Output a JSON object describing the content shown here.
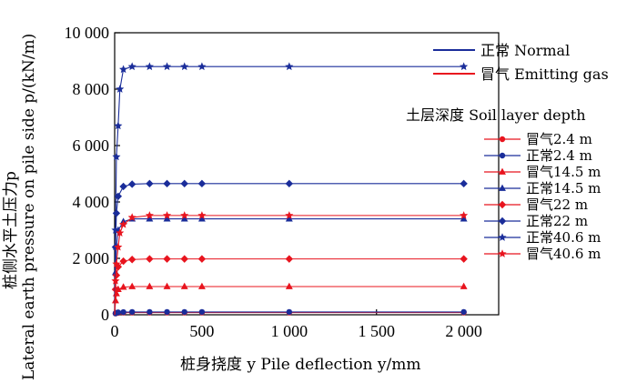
{
  "chart_data": {
    "type": "line",
    "xlabel": "桩身挠度 y  Pile deflection y/mm",
    "ylabel_cn": "桩侧水平土压力p",
    "ylabel_en": "Lateral earth pressure on pile side p/(kN/m)",
    "xlim": [
      0,
      2200
    ],
    "ylim": [
      0,
      10000
    ],
    "x_ticks": [
      0,
      500,
      1000,
      1500,
      2000
    ],
    "x_tick_labels": [
      "0",
      "500",
      "1 000",
      "1 500",
      "2 000"
    ],
    "y_ticks": [
      0,
      2000,
      4000,
      6000,
      8000,
      10000
    ],
    "y_tick_labels": [
      "0",
      "2 000",
      "4 000",
      "6 000",
      "8 000",
      "10 000"
    ],
    "legend_main": [
      {
        "label": "正常 Normal",
        "color": "#1a2d9a"
      },
      {
        "label": "冒气 Emitting gas",
        "color": "#e8141e"
      }
    ],
    "legend_title": "土层深度 Soil layer depth",
    "series": [
      {
        "name": "冒气2.4 m",
        "color": "#e8141e",
        "marker": "circle",
        "x": [
          0,
          5,
          10,
          20,
          50,
          100,
          200,
          300,
          400,
          500,
          1000,
          2000
        ],
        "y": [
          0,
          45,
          60,
          70,
          78,
          80,
          80,
          80,
          80,
          80,
          80,
          80
        ]
      },
      {
        "name": "正常2.4 m",
        "color": "#1a2d9a",
        "marker": "circle",
        "x": [
          0,
          5,
          10,
          20,
          50,
          100,
          200,
          300,
          400,
          500,
          1000,
          2000
        ],
        "y": [
          0,
          50,
          70,
          85,
          95,
          100,
          100,
          100,
          100,
          100,
          100,
          100
        ]
      },
      {
        "name": "冒气14.5 m",
        "color": "#e8141e",
        "marker": "triangle",
        "x": [
          0,
          5,
          10,
          20,
          50,
          100,
          200,
          300,
          400,
          500,
          1000,
          2000
        ],
        "y": [
          0,
          500,
          750,
          900,
          980,
          1000,
          1000,
          1000,
          1000,
          1000,
          1000,
          1000
        ]
      },
      {
        "name": "正常14.5 m",
        "color": "#1a2d9a",
        "marker": "triangle",
        "x": [
          0,
          5,
          10,
          20,
          50,
          100,
          200,
          300,
          400,
          500,
          1000,
          2000
        ],
        "y": [
          0,
          1500,
          2400,
          3000,
          3300,
          3400,
          3400,
          3400,
          3400,
          3400,
          3400,
          3400
        ]
      },
      {
        "name": "冒气22 m",
        "color": "#e8141e",
        "marker": "diamond",
        "x": [
          0,
          5,
          10,
          20,
          50,
          100,
          200,
          300,
          400,
          500,
          1000,
          2000
        ],
        "y": [
          0,
          900,
          1400,
          1700,
          1900,
          1960,
          1980,
          1980,
          1980,
          1980,
          1980,
          1980
        ]
      },
      {
        "name": "正常22 m",
        "color": "#1a2d9a",
        "marker": "diamond",
        "x": [
          0,
          5,
          10,
          20,
          50,
          100,
          200,
          300,
          400,
          500,
          1000,
          2000
        ],
        "y": [
          0,
          2400,
          3600,
          4200,
          4550,
          4630,
          4650,
          4650,
          4650,
          4650,
          4650,
          4650
        ]
      },
      {
        "name": "正常40.6 m",
        "color": "#1a2d9a",
        "marker": "star",
        "x": [
          0,
          5,
          10,
          20,
          30,
          50,
          100,
          200,
          300,
          400,
          500,
          1000,
          2000
        ],
        "y": [
          0,
          3000,
          5600,
          6700,
          8000,
          8700,
          8800,
          8800,
          8800,
          8800,
          8800,
          8800,
          8800
        ]
      },
      {
        "name": "冒气40.6 m",
        "color": "#e8141e",
        "marker": "star",
        "x": [
          0,
          5,
          10,
          20,
          30,
          50,
          100,
          200,
          300,
          400,
          500,
          1000,
          2000
        ],
        "y": [
          0,
          1200,
          1800,
          2400,
          2900,
          3200,
          3450,
          3520,
          3520,
          3520,
          3520,
          3520,
          3520
        ]
      }
    ]
  }
}
